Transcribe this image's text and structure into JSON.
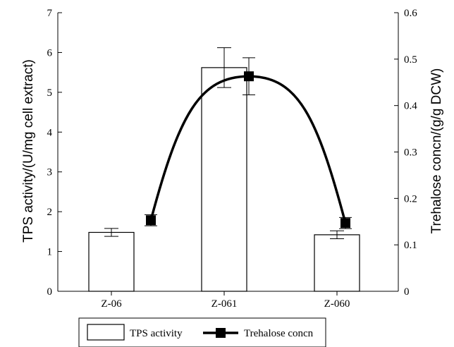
{
  "chart_data": {
    "type": "bar",
    "categories": [
      "Z-06",
      "Z-061",
      "Z-060"
    ],
    "series": [
      {
        "name": "TPS activity",
        "type": "bar",
        "axis": "left",
        "values": [
          1.48,
          5.62,
          1.42
        ],
        "error": [
          0.1,
          0.5,
          0.1
        ]
      },
      {
        "name": "Trehalose concn",
        "type": "line",
        "axis": "right",
        "values": [
          0.153,
          0.463,
          0.147
        ],
        "error": [
          0.012,
          0.04,
          0.012
        ]
      }
    ],
    "ylabel": "TPS activity/(U/mg cell extract)",
    "ylabel_right": "Trehalose concn/(g/g DCW)",
    "ylim": [
      0,
      7
    ],
    "ylim_right": [
      0,
      0.6
    ],
    "yticks": [
      "0",
      "1",
      "2",
      "3",
      "4",
      "5",
      "6",
      "7"
    ],
    "yticks_right": [
      "0",
      "0.1",
      "0.2",
      "0.3",
      "0.4",
      "0.5",
      "0.6"
    ],
    "legend_position": "bottom",
    "grid": false,
    "colors": {
      "bar_fill": "#ffffff",
      "stroke": "#000000"
    }
  }
}
